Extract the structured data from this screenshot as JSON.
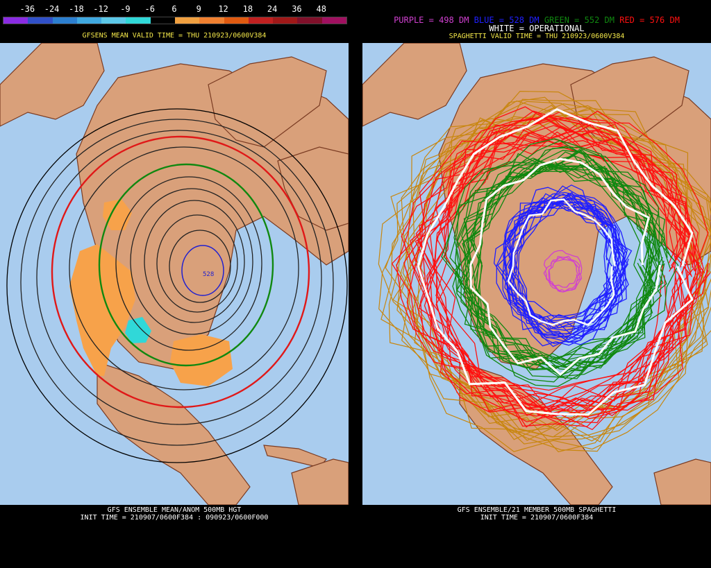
{
  "left_panel": {
    "scale_labels": [
      "-36",
      "-24",
      "-18",
      "-12",
      "-9",
      "-6",
      "6",
      "9",
      "12",
      "18",
      "24",
      "36",
      "48"
    ],
    "scale_colors": [
      "#8a2be2",
      "#3050c8",
      "#2c7fd0",
      "#3fa8e0",
      "#5cc8e8",
      "#30d8d8",
      "#000000",
      "#f0a040",
      "#f08030",
      "#e05a10",
      "#c02020",
      "#a01818",
      "#80102a",
      "#a01060"
    ],
    "header": "GFSENS MEAN VALID TIME = THU 210923/0600V384",
    "footer_line1": "GFS ENSEMBLE MEAN/ANOM 500MB HGT",
    "footer_line2": "INIT TIME = 210907/0600F384 : 090923/0600F000",
    "center_label": "528"
  },
  "right_panel": {
    "legend": {
      "purple": "PURPLE = 498 DM",
      "blue": "BLUE = 528 DM",
      "green": "GREEN = 552 DM",
      "red": "RED = 576 DM",
      "white": "WHITE = OPERATIONAL"
    },
    "header": "SPAGHETTI VALID TIME = THU 210923/0600V384",
    "footer_line1": "GFS ENSEMBLE/21 MEMBER 500MB SPAGHETTI",
    "footer_line2": "INIT TIME = 210907/0600F384"
  },
  "colors": {
    "ocean": "#a9ccee",
    "land": "#d9a07a",
    "border": "#7a3b22",
    "header_text": "#f4e84a",
    "footer_text": "#ffffff",
    "purple": "#d040d0",
    "blue": "#2020ff",
    "green": "#108810",
    "red": "#ff1010",
    "white": "#ffffff"
  }
}
